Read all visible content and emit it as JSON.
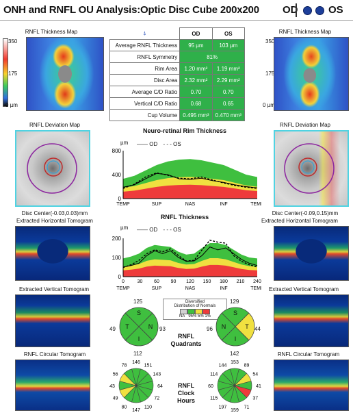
{
  "header": {
    "title": "ONH and RNFL OU Analysis:Optic Disc Cube 200x200",
    "od": "OD",
    "os": "OS"
  },
  "left": {
    "thickness_map_title": "RNFL Thickness Map",
    "scale": [
      "350",
      "175",
      "0 µm"
    ],
    "deviation_title": "RNFL Deviation Map",
    "disc_center": "Disc Center(-0.03,0.03)mm",
    "horizontal_title": "Extracted Horizontal Tomogram",
    "vertical_title": "Extracted Vertical Tomogram",
    "circular_title": "RNFL Circular Tomogram"
  },
  "right": {
    "thickness_map_title": "RNFL Thickness Map",
    "scale": [
      "350",
      "175",
      "0 µm"
    ],
    "deviation_title": "RNFL Deviation Map",
    "disc_center": "Disc Center(-0.09,0.15)mm",
    "horizontal_title": "Extracted Horizontal Tomogram",
    "vertical_title": "Extracted Vertical Tomogram",
    "circular_title": "RNFL Circular Tomogram"
  },
  "table": {
    "head": [
      "OD",
      "OS"
    ],
    "rows": [
      {
        "label": "Average RNFL Thickness",
        "od": "95 µm",
        "os": "103 µm"
      },
      {
        "label": "RNFL Symmetry",
        "both": "81%"
      },
      {
        "label": "Rim Area",
        "od": "1.20 mm²",
        "os": "1.19 mm²"
      },
      {
        "label": "Disc Area",
        "od": "2.32 mm²",
        "os": "2.29 mm²"
      },
      {
        "label": "Average C/D Ratio",
        "od": "0.70",
        "os": "0.70"
      },
      {
        "label": "Vertical C/D Ratio",
        "od": "0.68",
        "os": "0.65"
      },
      {
        "label": "Cup Volume",
        "od": "0.495 mm³",
        "os": "0.470 mm³"
      }
    ]
  },
  "colors": {
    "od_line": "#000000",
    "os_line": "#000000",
    "green": "#3fbf3f",
    "yellow": "#f0e040",
    "red": "#ee3b3b",
    "gray": "#bdbdbd"
  },
  "chart_data": [
    {
      "type": "area",
      "title": "Neuro-retinal Rim Thickness",
      "ylabel": "µm",
      "legend": [
        "OD",
        "OS"
      ],
      "yticks": [
        "800",
        "400",
        "0"
      ],
      "ylim": [
        0,
        800
      ],
      "xticks": [
        "TEMP",
        "SUP",
        "NAS",
        "INF",
        "TEMP"
      ],
      "x": [
        0,
        1,
        2,
        3,
        4,
        5,
        6,
        7,
        8,
        9,
        10,
        11,
        12
      ],
      "series": [
        {
          "name": "OD",
          "values": [
            190,
            230,
            330,
            420,
            400,
            330,
            320,
            340,
            300,
            270,
            230,
            200,
            180
          ]
        },
        {
          "name": "OS",
          "values": [
            170,
            240,
            360,
            430,
            390,
            340,
            330,
            360,
            310,
            260,
            220,
            190,
            170
          ]
        }
      ],
      "normal_band_top": [
        330,
        380,
        470,
        560,
        620,
        650,
        660,
        640,
        600,
        560,
        480,
        400,
        360
      ]
    },
    {
      "type": "line",
      "title": "RNFL Thickness",
      "ylabel": "µm",
      "legend": [
        "OD",
        "OS"
      ],
      "yticks": [
        "200",
        "100",
        "0"
      ],
      "ylim": [
        0,
        200
      ],
      "xticks": [
        "0",
        "30",
        "60",
        "90",
        "120",
        "150",
        "180",
        "210",
        "240"
      ],
      "xlabels2": [
        "TEMP",
        "SUP",
        "NAS",
        "INF",
        "TEMP"
      ],
      "x": [
        0,
        15,
        30,
        45,
        60,
        75,
        90,
        105,
        120,
        135,
        150,
        165,
        180,
        195,
        210,
        225,
        240,
        255
      ],
      "series": [
        {
          "name": "OD",
          "values": [
            50,
            58,
            70,
            110,
            135,
            120,
            135,
            100,
            80,
            82,
            110,
            155,
            140,
            150,
            120,
            90,
            70,
            58
          ]
        },
        {
          "name": "OS",
          "values": [
            48,
            62,
            85,
            120,
            140,
            130,
            145,
            110,
            82,
            85,
            140,
            190,
            180,
            175,
            110,
            80,
            62,
            50
          ]
        }
      ],
      "normal_band_top": [
        95,
        105,
        120,
        150,
        165,
        160,
        155,
        130,
        115,
        120,
        150,
        175,
        175,
        165,
        140,
        115,
        100,
        95
      ]
    }
  ],
  "legend_box": {
    "title": "Distribution of Normals",
    "title_prefix": "Diversified",
    "items": [
      "NA",
      "95%",
      "5%",
      "1%"
    ]
  },
  "quadrants": {
    "label_a": "RNFL",
    "label_b": "Quadrants",
    "od": {
      "top": "125",
      "left": "49",
      "right": "93",
      "bottom": "112",
      "segments": [
        "S",
        "N",
        "I",
        "T"
      ]
    },
    "os": {
      "top": "129",
      "left": "96",
      "right": "44",
      "bottom": "142",
      "segments": [
        "S",
        "T",
        "I",
        "N"
      ]
    }
  },
  "clock": {
    "label_a": "RNFL",
    "label_b": "Clock",
    "label_c": "Hours",
    "od": [
      "146",
      "151",
      "143",
      "64",
      "72",
      "110",
      "147",
      "80",
      "49",
      "43",
      "56",
      "78"
    ],
    "os": [
      "153",
      "89",
      "54",
      "41",
      "37",
      "71",
      "159",
      "197",
      "115",
      "60",
      "114",
      "144"
    ]
  }
}
